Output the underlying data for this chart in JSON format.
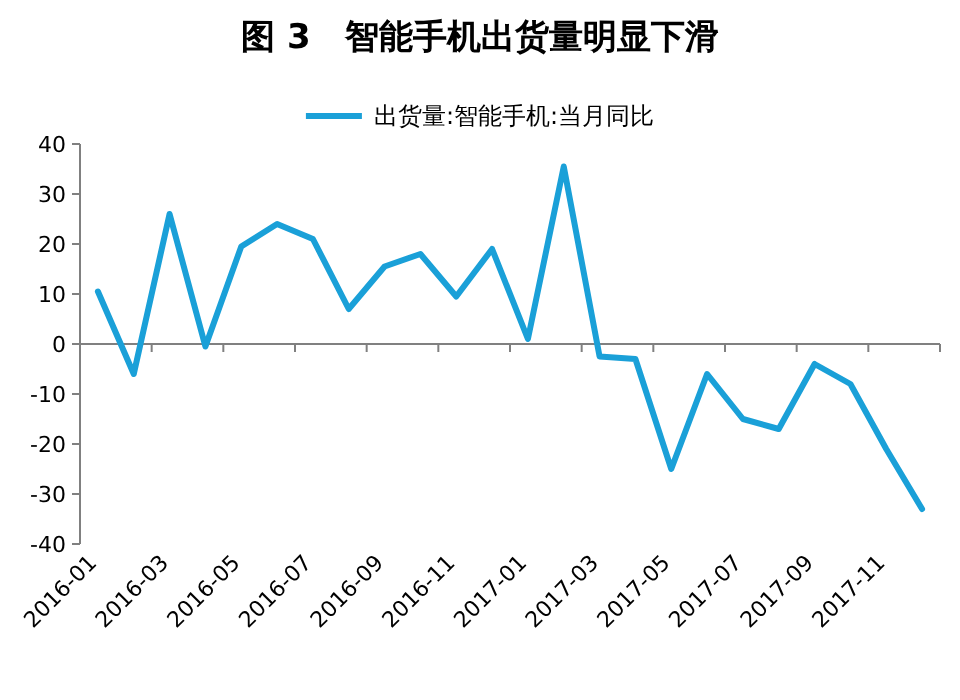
{
  "chart_data": {
    "type": "line",
    "title": "图 3　智能手机出货量明显下滑",
    "categories": [
      "2016-01",
      null,
      "2016-03",
      null,
      "2016-05",
      null,
      "2016-07",
      null,
      "2016-09",
      null,
      "2016-11",
      null,
      "2017-01",
      null,
      "2017-03",
      null,
      "2017-05",
      null,
      "2017-07",
      null,
      "2017-09",
      null,
      "2017-11",
      null
    ],
    "series": [
      {
        "name": "出货量:智能手机:当月同比",
        "color": "#1aa0d8",
        "values": [
          10.5,
          -6,
          26,
          -0.5,
          19.5,
          24,
          21,
          7,
          15.5,
          18,
          9.5,
          19,
          1,
          35.5,
          -2.5,
          -3,
          -25,
          -6,
          -15,
          -17,
          -4,
          -8,
          -21,
          -33
        ]
      }
    ],
    "ylim": [
      -40,
      40
    ],
    "yticks": [
      -40,
      -30,
      -20,
      -10,
      0,
      10,
      20,
      30,
      40
    ],
    "legend": "top",
    "marker": "none",
    "line_style": "solid"
  }
}
